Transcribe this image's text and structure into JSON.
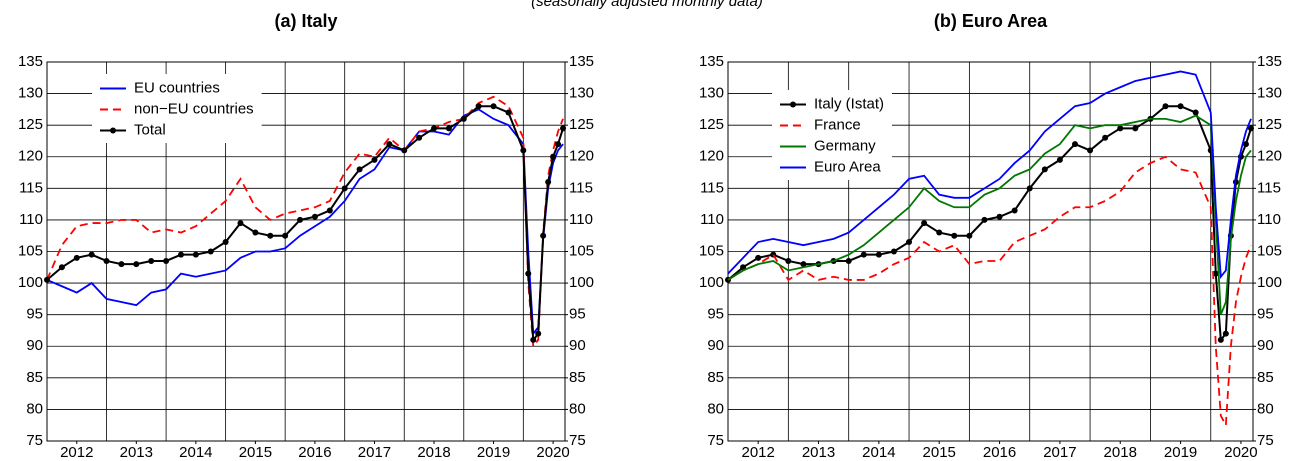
{
  "chart_data": [
    {
      "type": "line",
      "title": "(a) Italy",
      "subtitle": "(seasonally adjusted monthly data)",
      "x": [
        2012,
        2012.25,
        2012.5,
        2012.75,
        2013,
        2013.25,
        2013.5,
        2013.75,
        2014,
        2014.25,
        2014.5,
        2014.75,
        2015,
        2015.25,
        2015.5,
        2015.75,
        2016,
        2016.25,
        2016.5,
        2016.75,
        2017,
        2017.25,
        2017.5,
        2017.75,
        2018,
        2018.25,
        2018.5,
        2018.75,
        2019,
        2019.25,
        2019.5,
        2019.75,
        2020,
        2020.083,
        2020.167,
        2020.25,
        2020.333,
        2020.417,
        2020.5,
        2020.583,
        2020.667
      ],
      "series": [
        {
          "name": "EU countries",
          "color": "#0000ff",
          "values": [
            100.5,
            99.5,
            98.5,
            100,
            97.5,
            97,
            96.5,
            98.5,
            99,
            101.5,
            101,
            101.5,
            102,
            104,
            105,
            105,
            105.5,
            107.5,
            109,
            110.5,
            113,
            116.5,
            118,
            121.5,
            121,
            124,
            124,
            123.5,
            126.5,
            127.5,
            126,
            125,
            122,
            105,
            92,
            93,
            107,
            115,
            119,
            121,
            122
          ]
        },
        {
          "name": "non−EU countries",
          "color": "#ff0000",
          "dash": true,
          "values": [
            100.5,
            106,
            109,
            109.5,
            109.5,
            110,
            110,
            108,
            108.5,
            108,
            109,
            111,
            113,
            116.5,
            112,
            110,
            111,
            111.5,
            112,
            113,
            117.5,
            120.5,
            120,
            123,
            121,
            124,
            124.5,
            125.5,
            126,
            128.5,
            129.5,
            128,
            123,
            100,
            90,
            91,
            108,
            117,
            121,
            124,
            126
          ]
        },
        {
          "name": "Total",
          "color": "#000000",
          "marker": true,
          "values": [
            100.5,
            102.5,
            104,
            104.5,
            103.5,
            103,
            103,
            103.5,
            103.5,
            104.5,
            104.5,
            105,
            106.5,
            109.5,
            108,
            107.5,
            107.5,
            110,
            110.5,
            111.5,
            115,
            118,
            119.5,
            122,
            121,
            123,
            124.5,
            124.5,
            126,
            128,
            128,
            127,
            121,
            101.5,
            91,
            92,
            107.5,
            116,
            120,
            122,
            124.5
          ]
        }
      ],
      "xlim": [
        2012,
        2020.7
      ],
      "xticks": [
        {
          "value": 2012.5,
          "label": "2012"
        },
        {
          "value": 2013.5,
          "label": "2013"
        },
        {
          "value": 2014.5,
          "label": "2014"
        },
        {
          "value": 2015.5,
          "label": "2015"
        },
        {
          "value": 2016.5,
          "label": "2016"
        },
        {
          "value": 2017.5,
          "label": "2017"
        },
        {
          "value": 2018.5,
          "label": "2018"
        },
        {
          "value": 2019.5,
          "label": "2019"
        },
        {
          "value": 2020.5,
          "label": "2020"
        }
      ],
      "xgrid": [
        2013,
        2014,
        2015,
        2016,
        2017,
        2018,
        2019,
        2020
      ],
      "ylim": [
        75,
        135
      ],
      "yticks": [
        75,
        80,
        85,
        90,
        95,
        100,
        105,
        110,
        115,
        120,
        125,
        130,
        135
      ],
      "y2lim": [
        75,
        135
      ],
      "y2ticks": [
        75,
        80,
        85,
        90,
        95,
        100,
        105,
        110,
        115,
        120,
        125,
        130,
        135
      ],
      "grid": true,
      "legend": "upper left"
    },
    {
      "type": "line",
      "title": "(b) Euro Area",
      "x": [
        2012,
        2012.25,
        2012.5,
        2012.75,
        2013,
        2013.25,
        2013.5,
        2013.75,
        2014,
        2014.25,
        2014.5,
        2014.75,
        2015,
        2015.25,
        2015.5,
        2015.75,
        2016,
        2016.25,
        2016.5,
        2016.75,
        2017,
        2017.25,
        2017.5,
        2017.75,
        2018,
        2018.25,
        2018.5,
        2018.75,
        2019,
        2019.25,
        2019.5,
        2019.75,
        2020,
        2020.083,
        2020.167,
        2020.25,
        2020.333,
        2020.417,
        2020.5,
        2020.583,
        2020.667
      ],
      "series": [
        {
          "name": "Italy (Istat)",
          "color": "#000000",
          "marker": true,
          "values": [
            100.5,
            102.5,
            104,
            104.5,
            103.5,
            103,
            103,
            103.5,
            103.5,
            104.5,
            104.5,
            105,
            106.5,
            109.5,
            108,
            107.5,
            107.5,
            110,
            110.5,
            111.5,
            115,
            118,
            119.5,
            122,
            121,
            123,
            124.5,
            124.5,
            126,
            128,
            128,
            127,
            121,
            101.5,
            91,
            92,
            107.5,
            116,
            120,
            122,
            124.5
          ]
        },
        {
          "name": "France",
          "color": "#ff0000",
          "dash": true,
          "values": [
            100.5,
            102,
            103,
            104.5,
            100.5,
            102,
            100.5,
            101,
            100.5,
            100.5,
            101.5,
            103,
            104,
            106.5,
            105,
            106,
            103,
            103.5,
            103.5,
            106.5,
            107.5,
            108.5,
            110.5,
            112,
            112,
            113,
            114.5,
            117.5,
            119,
            120,
            118,
            117.5,
            112,
            90,
            79,
            77.5,
            90,
            97,
            101,
            104,
            106
          ]
        },
        {
          "name": "Germany",
          "color": "#007700",
          "values": [
            100.5,
            102,
            103,
            103.5,
            102,
            102.5,
            103,
            103.5,
            104.5,
            106,
            108,
            110,
            112,
            115,
            113,
            112,
            112,
            114,
            115,
            117,
            118,
            120.5,
            122,
            125,
            124.5,
            125,
            125,
            125.5,
            126,
            126,
            125.5,
            126.5,
            125,
            110,
            95,
            97,
            107,
            113,
            117,
            120,
            121
          ]
        },
        {
          "name": "Euro Area",
          "color": "#0000ff",
          "values": [
            101.5,
            104,
            106.5,
            107,
            106.5,
            106,
            106.5,
            107,
            108,
            110,
            112,
            114,
            116.5,
            117,
            114,
            113.5,
            113.5,
            115,
            116.5,
            119,
            121,
            124,
            126,
            128,
            128.5,
            130,
            131,
            132,
            132.5,
            133,
            133.5,
            133,
            127,
            112,
            101,
            102,
            110,
            117,
            121,
            124,
            126
          ]
        }
      ],
      "xlim": [
        2012,
        2020.7
      ],
      "xticks": [
        {
          "value": 2012.5,
          "label": "2012"
        },
        {
          "value": 2013.5,
          "label": "2013"
        },
        {
          "value": 2014.5,
          "label": "2014"
        },
        {
          "value": 2015.5,
          "label": "2015"
        },
        {
          "value": 2016.5,
          "label": "2016"
        },
        {
          "value": 2017.5,
          "label": "2017"
        },
        {
          "value": 2018.5,
          "label": "2018"
        },
        {
          "value": 2019.5,
          "label": "2019"
        },
        {
          "value": 2020.5,
          "label": "2020"
        }
      ],
      "xgrid": [
        2013,
        2014,
        2015,
        2016,
        2017,
        2018,
        2019,
        2020
      ],
      "ylim": [
        75,
        135
      ],
      "yticks": [
        75,
        80,
        85,
        90,
        95,
        100,
        105,
        110,
        115,
        120,
        125,
        130,
        135
      ],
      "y2lim": [
        75,
        135
      ],
      "y2ticks": [
        75,
        80,
        85,
        90,
        95,
        100,
        105,
        110,
        115,
        120,
        125,
        130,
        135
      ],
      "grid": true,
      "legend": "upper left"
    }
  ]
}
